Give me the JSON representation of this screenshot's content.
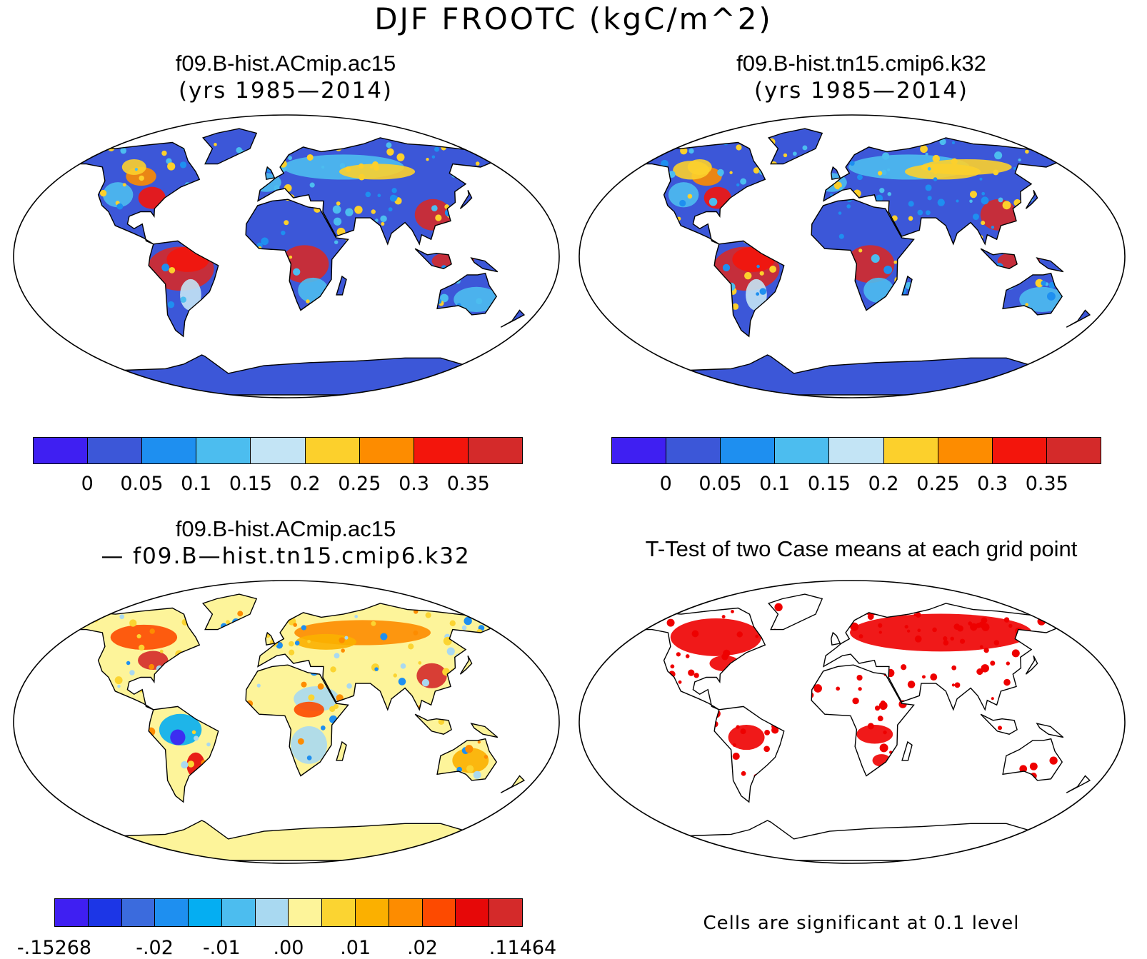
{
  "title": "DJF FROOTC (kgC/m^2)",
  "panels": [
    {
      "id": "case1",
      "title_line1": "f09.B-hist.ACmip.ac15",
      "title_line2": "(yrs 1985—2014)",
      "scheme": "absolute",
      "colorbar": {
        "colors": [
          "#3f1ff2",
          "#3c57d8",
          "#1e8ff0",
          "#4cbdef",
          "#c3e4f5",
          "#fcd02c",
          "#fd8c00",
          "#f3150c",
          "#d42a2a"
        ],
        "tick_labels": [
          "0",
          "0.05",
          "0.1",
          "0.15",
          "0.2",
          "0.25",
          "0.3",
          "0.35"
        ]
      }
    },
    {
      "id": "case2",
      "title_line1": "f09.B-hist.tn15.cmip6.k32",
      "title_line2": "(yrs 1985—2014)",
      "scheme": "absolute",
      "colorbar": {
        "colors": [
          "#3f1ff2",
          "#3c57d8",
          "#1e8ff0",
          "#4cbdef",
          "#c3e4f5",
          "#fcd02c",
          "#fd8c00",
          "#f3150c",
          "#d42a2a"
        ],
        "tick_labels": [
          "0",
          "0.05",
          "0.1",
          "0.15",
          "0.2",
          "0.25",
          "0.3",
          "0.35"
        ]
      }
    },
    {
      "id": "difference",
      "title_line1": "f09.B-hist.ACmip.ac15",
      "title_line2": "— f09.B—hist.tn15.cmip6.k32",
      "scheme": "difference",
      "colorbar": {
        "colors": [
          "#3f1ff2",
          "#1c36e6",
          "#3b6bdd",
          "#1e8ff0",
          "#05aef2",
          "#4cbdef",
          "#a9d9f1",
          "#fdf49a",
          "#fbd431",
          "#fbb000",
          "#fd8c00",
          "#fd4a00",
          "#e60808",
          "#d42a2a"
        ],
        "tick_labels": [
          "-.15268",
          "-.02",
          "-.01",
          ".00",
          ".01",
          ".02",
          ".11464"
        ]
      }
    },
    {
      "id": "ttest",
      "title_line1": "T-Test of two Case means at each grid point",
      "title_line2": "",
      "scheme": "ttest",
      "significance_color": "#ee0000",
      "note": "Cells are significant at 0.1 level"
    }
  ]
}
